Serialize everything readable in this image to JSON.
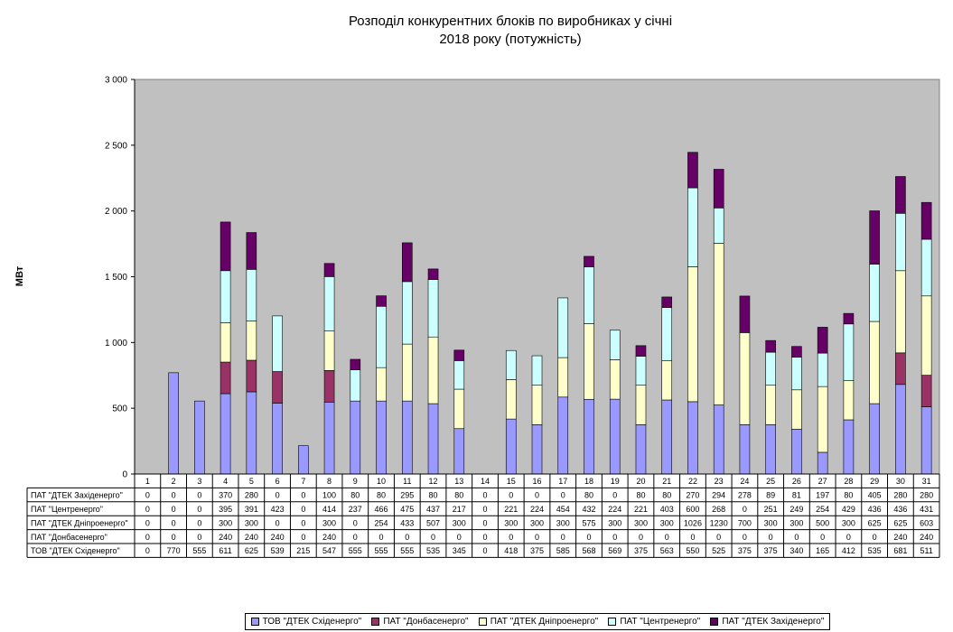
{
  "chart_data": {
    "type": "bar",
    "stacked": true,
    "title_line1": "Розподіл конкурентних  блоків по виробниках  у січні",
    "title_line2": "2018 року (потужність)",
    "ylabel": "МВт",
    "ylim": [
      0,
      3000
    ],
    "yticks": [
      "0",
      "500",
      "1 000",
      "1 500",
      "2 000",
      "2 500",
      "3 000"
    ],
    "ytick_values": [
      0,
      500,
      1000,
      1500,
      2000,
      2500,
      3000
    ],
    "grid": false,
    "background": "#c0c0c0",
    "legend_position": "bottom",
    "categories": [
      "1",
      "2",
      "3",
      "4",
      "5",
      "6",
      "7",
      "8",
      "9",
      "10",
      "11",
      "12",
      "13",
      "14",
      "15",
      "16",
      "17",
      "18",
      "19",
      "20",
      "21",
      "22",
      "23",
      "24",
      "25",
      "26",
      "27",
      "28",
      "29",
      "30",
      "31"
    ],
    "series": [
      {
        "name": "ТОВ \"ДТЕК Східенерго\"",
        "color": "#9999ff",
        "values": [
          0,
          770,
          555,
          611,
          625,
          539,
          215,
          547,
          555,
          555,
          555,
          535,
          345,
          0,
          418,
          375,
          585,
          568,
          569,
          375,
          563,
          550,
          525,
          375,
          375,
          340,
          165,
          412,
          535,
          681,
          511
        ]
      },
      {
        "name": "ПАТ \"Донбасенерго\"",
        "color": "#993366",
        "values": [
          0,
          0,
          0,
          240,
          240,
          240,
          0,
          240,
          0,
          0,
          0,
          0,
          0,
          0,
          0,
          0,
          0,
          0,
          0,
          0,
          0,
          0,
          0,
          0,
          0,
          0,
          0,
          0,
          0,
          240,
          240
        ]
      },
      {
        "name": "ПАТ \"ДТЕК Дніпроенерго\"",
        "color": "#ffffcc",
        "values": [
          0,
          0,
          0,
          300,
          300,
          0,
          0,
          300,
          0,
          254,
          433,
          507,
          300,
          0,
          300,
          300,
          300,
          575,
          300,
          300,
          300,
          1026,
          1230,
          700,
          300,
          300,
          500,
          300,
          625,
          625,
          603
        ]
      },
      {
        "name": "ПАТ \"Центренерго\"",
        "color": "#ccffff",
        "values": [
          0,
          0,
          0,
          395,
          391,
          423,
          0,
          414,
          237,
          466,
          475,
          437,
          217,
          0,
          221,
          224,
          454,
          432,
          224,
          221,
          403,
          600,
          268,
          0,
          251,
          249,
          254,
          429,
          436,
          436,
          431
        ]
      },
      {
        "name": "ПАТ \"ДТЕК Західенерго\"",
        "color": "#660066",
        "values": [
          0,
          0,
          0,
          370,
          280,
          0,
          0,
          100,
          80,
          80,
          295,
          80,
          80,
          0,
          0,
          0,
          0,
          80,
          0,
          80,
          80,
          270,
          294,
          278,
          89,
          81,
          197,
          80,
          405,
          280,
          280
        ]
      }
    ],
    "table_order": [
      4,
      3,
      2,
      1,
      0
    ]
  }
}
